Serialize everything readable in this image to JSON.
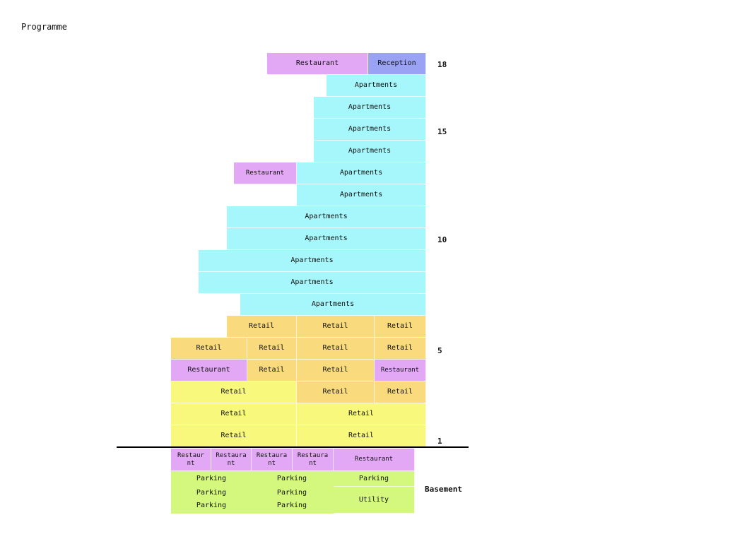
{
  "title": "Programme",
  "colors": {
    "apartments": "#a5f7fb",
    "restaurant": "#e2a8f6",
    "reception": "#9aa2f4",
    "retail_orange": "#f9db7e",
    "retail_yellow": "#f7f87c",
    "basement_green": "#d4f77e",
    "ground_line": "#000000"
  },
  "floor_numbers": [
    "18",
    "15",
    "10",
    "5",
    "1"
  ],
  "basement_label": "Basement",
  "labels": {
    "restaurant": "Restaurant",
    "reception": "Reception",
    "apartments": "Apartments",
    "retail": "Retail",
    "restaurant_wrapped": "Restaura\nnt",
    "restaurant_wrapped_b": "Restaur\nnt",
    "parking": "Parking",
    "utility": "Utility"
  }
}
